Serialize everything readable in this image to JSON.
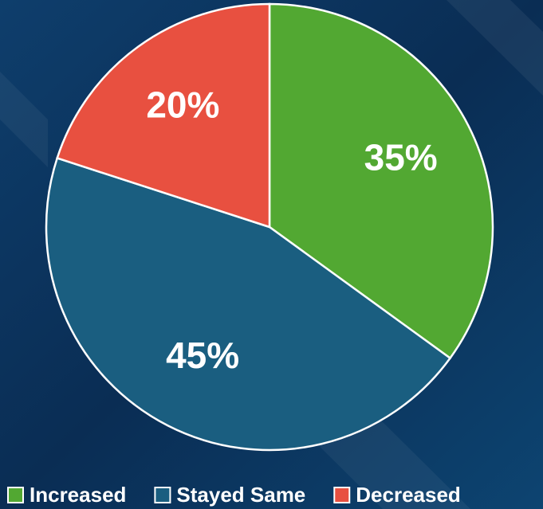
{
  "chart_data": {
    "type": "pie",
    "categories": [
      "Increased",
      "Stayed Same",
      "Decreased"
    ],
    "values": [
      35,
      45,
      20
    ],
    "value_labels": [
      "35%",
      "45%",
      "20%"
    ],
    "colors": [
      "#52a832",
      "#1a5e80",
      "#e85040"
    ],
    "legend": "bottom"
  }
}
